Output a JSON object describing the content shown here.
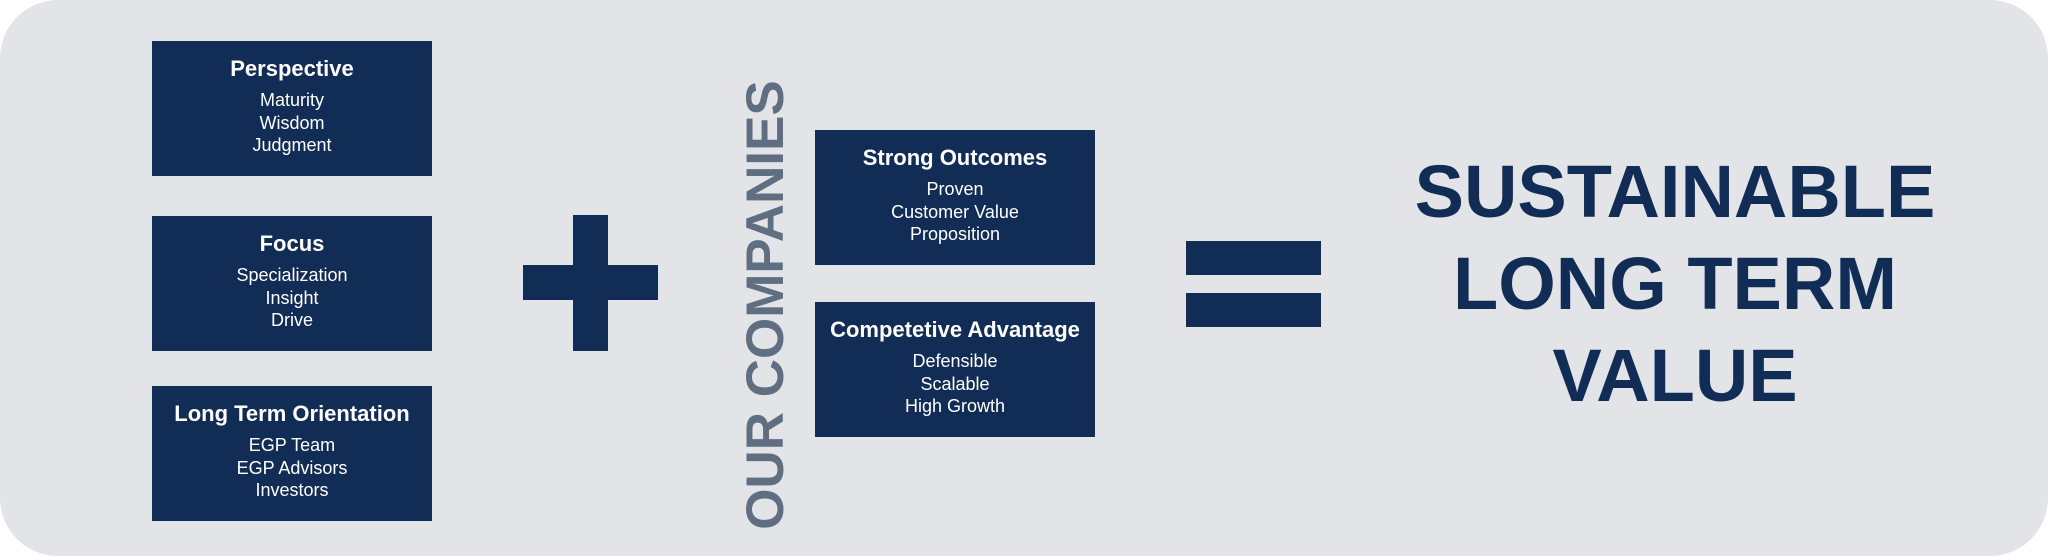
{
  "left_cards": [
    {
      "title": "Perspective",
      "lines": [
        "Maturity",
        "Wisdom",
        "Judgment"
      ]
    },
    {
      "title": "Focus",
      "lines": [
        "Specialization",
        "Insight",
        "Drive"
      ]
    },
    {
      "title": "Long Term Orientation",
      "lines": [
        "EGP Team",
        "EGP Advisors",
        "Investors"
      ]
    }
  ],
  "vertical_label": "OUR COMPANIES",
  "right_cards": [
    {
      "title": "Strong Outcomes",
      "lines": [
        "Proven",
        "Customer Value",
        "Proposition"
      ]
    },
    {
      "title": "Competetive Advantage",
      "lines": [
        "Defensible",
        "Scalable",
        "High Growth"
      ]
    }
  ],
  "result": {
    "lines": [
      "SUSTAINABLE",
      "LONG TERM",
      "VALUE"
    ]
  },
  "colors": {
    "panel_background": "#e3e4e8",
    "card_fill": "#122d55",
    "card_text": "#ffffff",
    "vertical_label": "#5f6e80",
    "result_text": "#122d55"
  },
  "icons": {
    "plus": "plus-sign",
    "equals": "equals-sign"
  }
}
